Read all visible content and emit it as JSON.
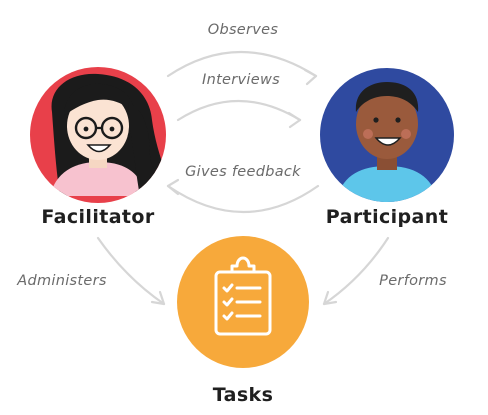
{
  "nodes": {
    "facilitator": {
      "label": "Facilitator"
    },
    "participant": {
      "label": "Participant"
    },
    "tasks": {
      "label": "Tasks"
    }
  },
  "edges": {
    "observes": "Observes",
    "interviews": "Interviews",
    "gives_feedback": "Gives feedback",
    "administers": "Administers",
    "performs": "Performs"
  },
  "colors": {
    "facilitator_circle": "#e8404a",
    "participant_circle": "#2f4aa0",
    "tasks_circle": "#f7a93b",
    "arrow": "#d6d6d6",
    "label_text": "#1f1f1f",
    "edge_text": "#6b6b6b"
  },
  "icons": {
    "facilitator": "woman-avatar-icon",
    "participant": "man-avatar-icon",
    "tasks": "clipboard-checklist-icon"
  }
}
